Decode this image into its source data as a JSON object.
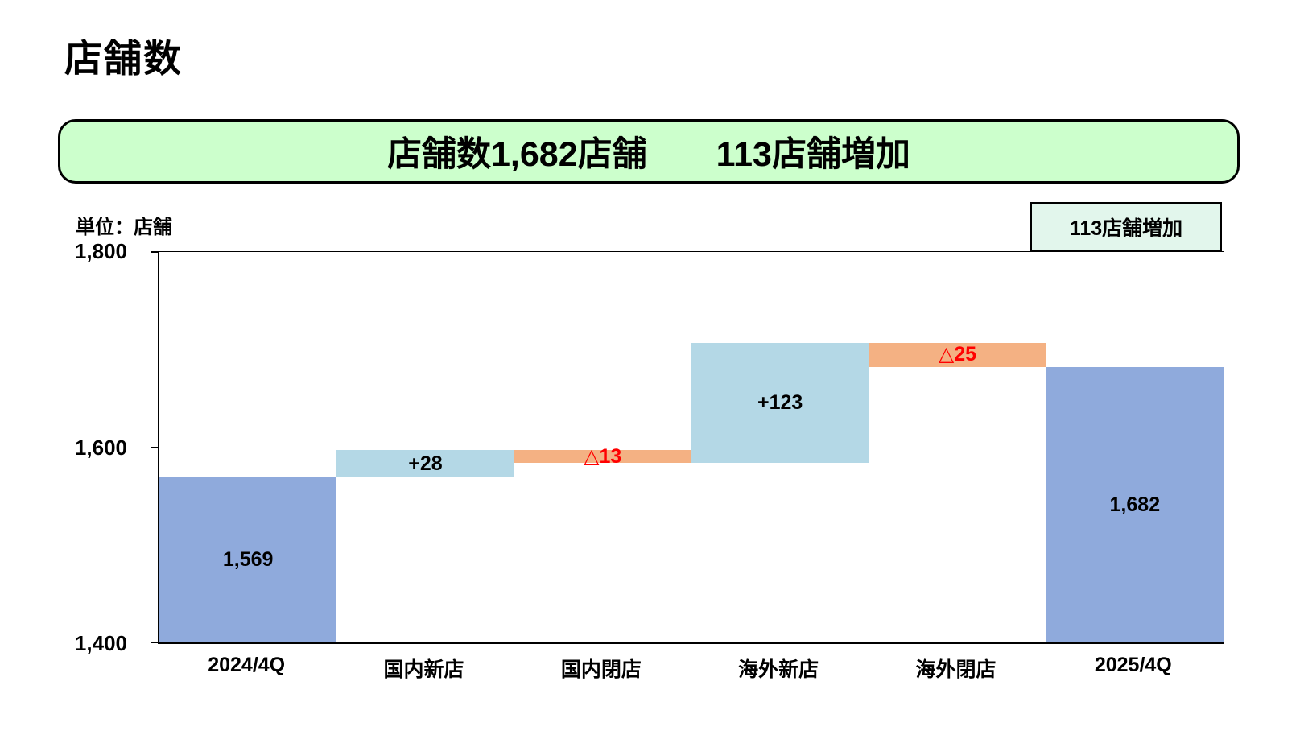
{
  "page_title": "店舗数",
  "banner": {
    "text": "店舗数1,682店舗　　113店舗増加",
    "bg_color": "#CCFFCC"
  },
  "unit_label": "単位：店舗",
  "callout": {
    "text": "113店舗増加",
    "bg_color": "#E2F6EC"
  },
  "chart_data": {
    "type": "waterfall",
    "title": "店舗数",
    "categories": [
      "2024/4Q",
      "国内新店",
      "国内閉店",
      "海外新店",
      "海外閉店",
      "2025/4Q"
    ],
    "bars": [
      {
        "category": "2024/4Q",
        "start": 1400,
        "end": 1569,
        "label": "1,569",
        "kind": "total"
      },
      {
        "category": "国内新店",
        "start": 1569,
        "end": 1597,
        "label": "+28",
        "kind": "increase"
      },
      {
        "category": "国内閉店",
        "start": 1597,
        "end": 1584,
        "label": "△13",
        "kind": "decrease"
      },
      {
        "category": "海外新店",
        "start": 1584,
        "end": 1707,
        "label": "+123",
        "kind": "increase"
      },
      {
        "category": "海外閉店",
        "start": 1707,
        "end": 1682,
        "label": "△25",
        "kind": "decrease"
      },
      {
        "category": "2025/4Q",
        "start": 1400,
        "end": 1682,
        "label": "1,682",
        "kind": "total"
      }
    ],
    "ylim": [
      1400,
      1800
    ],
    "yticks": [
      {
        "label": "1,400",
        "value": 1400
      },
      {
        "label": "1,600",
        "value": 1600
      },
      {
        "label": "1,800",
        "value": 1800
      }
    ],
    "colors": {
      "total": "#8FAADC",
      "increase": "#B4D8E6",
      "decrease": "#F4B183",
      "decrease_label": "#FF0000",
      "label": "#000000"
    },
    "grid": false,
    "legend": "none",
    "net_change_label": "113店舗増加"
  }
}
